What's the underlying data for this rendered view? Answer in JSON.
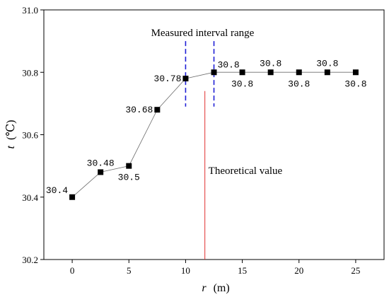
{
  "chart_data": {
    "type": "line",
    "title": "",
    "xlabel": {
      "italic": "r",
      "unit": "(m)"
    },
    "ylabel": {
      "italic": "t",
      "unit": "(℃)"
    },
    "xlim": [
      -2.5,
      27.5
    ],
    "ylim": [
      30.2,
      31.0
    ],
    "xticks": [
      0,
      5,
      10,
      15,
      20,
      25
    ],
    "xtick_labels": [
      "0",
      "5",
      "10",
      "15",
      "20",
      "25"
    ],
    "yticks": [
      30.2,
      30.4,
      30.6,
      30.8,
      31.0
    ],
    "ytick_labels": [
      "30.2",
      "30.4",
      "30.6",
      "30.8",
      "31.0"
    ],
    "grid": false,
    "series": [
      {
        "x": [
          0,
          2.5,
          5,
          7.5,
          10,
          12.5,
          15,
          17.5,
          20,
          22.5,
          25
        ],
        "values": [
          30.4,
          30.48,
          30.5,
          30.68,
          30.78,
          30.8,
          30.8,
          30.8,
          30.8,
          30.8,
          30.8
        ]
      }
    ],
    "data_labels": [
      {
        "text": "30.4",
        "x": 0,
        "y": 30.4,
        "side": "upper-left"
      },
      {
        "text": "30.48",
        "x": 2.5,
        "y": 30.48,
        "side": "above"
      },
      {
        "text": "30.5",
        "x": 5,
        "y": 30.5,
        "side": "below"
      },
      {
        "text": "30.68",
        "x": 7.5,
        "y": 30.68,
        "side": "left"
      },
      {
        "text": "30.78",
        "x": 10,
        "y": 30.78,
        "side": "left"
      },
      {
        "text": "30.8",
        "x": 12.5,
        "y": 30.8,
        "side": "upper-right"
      },
      {
        "text": "30.8",
        "x": 15,
        "y": 30.8,
        "side": "below"
      },
      {
        "text": "30.8",
        "x": 17.5,
        "y": 30.8,
        "side": "above"
      },
      {
        "text": "30.8",
        "x": 20,
        "y": 30.8,
        "side": "below"
      },
      {
        "text": "30.8",
        "x": 22.5,
        "y": 30.8,
        "side": "above"
      },
      {
        "text": "30.8",
        "x": 25,
        "y": 30.8,
        "side": "below"
      }
    ],
    "annotations": {
      "measured_interval": {
        "label": "Measured interval range",
        "x_start": 10,
        "x_end": 12.5,
        "y_from": 30.69,
        "y_to": 30.9,
        "color": "#1f1fd6"
      },
      "theoretical": {
        "label": "Theoretical value",
        "x": 11.7,
        "y_from": 30.2,
        "y_to": 30.74,
        "color": "#e03030"
      }
    },
    "colors": {
      "marker": "#000000",
      "line": "#6e6e6e",
      "axis": "#000000"
    }
  }
}
